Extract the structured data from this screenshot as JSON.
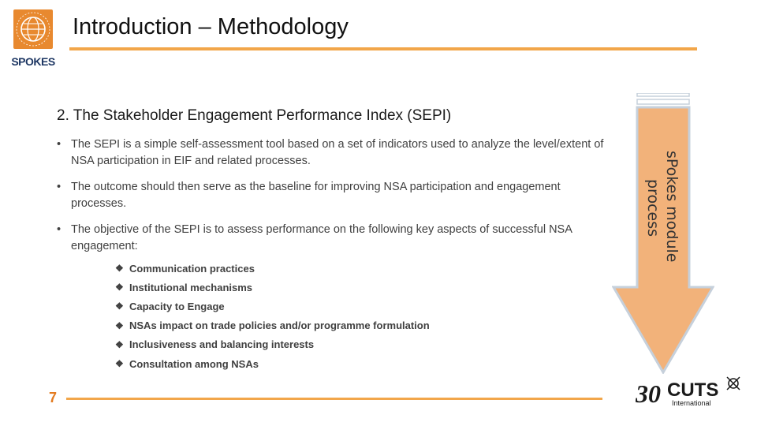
{
  "header": {
    "logo_text": "SPOKES",
    "title": "Introduction – Methodology"
  },
  "section": {
    "heading": "2. The Stakeholder Engagement Performance Index (SEPI)",
    "bullets": [
      "The SEPI is a simple self-assessment tool based on a set of indicators used to analyze the level/extent of NSA participation in EIF and related processes.",
      "The outcome should then serve as the baseline for improving NSA participation and engagement processes.",
      "The objective of the SEPI is to assess performance on the following key aspects of successful NSA engagement:"
    ],
    "aspects": [
      "Communication practices",
      "Institutional mechanisms",
      "Capacity to Engage",
      "NSAs impact on trade policies and/or programme formulation",
      "Inclusiveness and balancing interests",
      "Consultation among NSAs"
    ]
  },
  "arrow": {
    "line1": "sPokes module",
    "line2": "process"
  },
  "footer": {
    "page_number": "7",
    "cuts_logo_main": "CUTS",
    "cuts_logo_sub": "International",
    "cuts_logo_years": "30"
  },
  "colors": {
    "accent_orange": "#e8892f",
    "arrow_fill": "#f2b27a",
    "arrow_border": "#c6d0db"
  }
}
